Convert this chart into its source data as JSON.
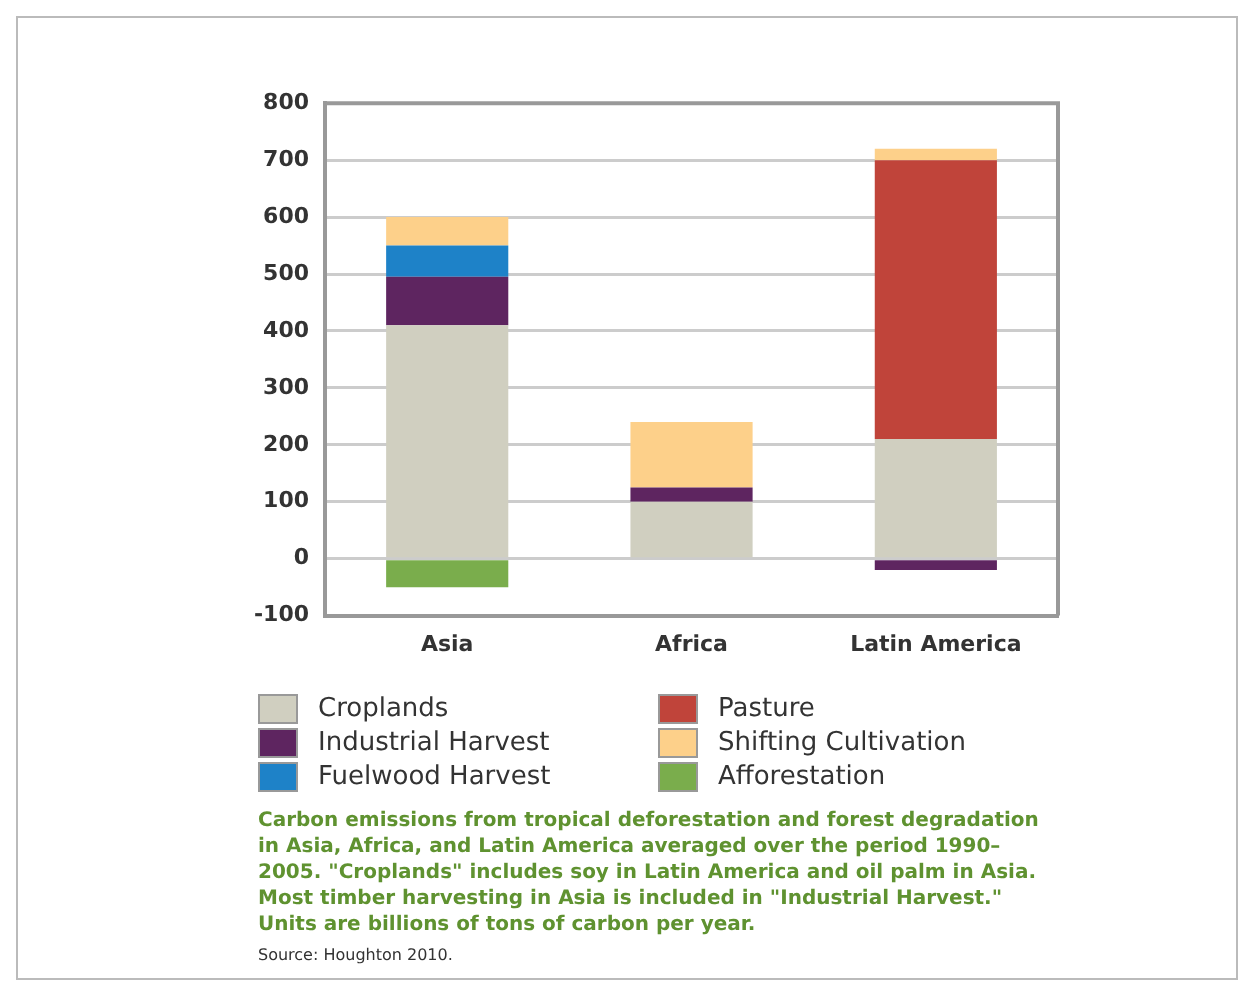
{
  "chart_data": {
    "type": "bar",
    "stacked": true,
    "categories": [
      "Asia",
      "Africa",
      "Latin America"
    ],
    "series": [
      {
        "name": "Croplands",
        "color": "#d0cfc0",
        "values": [
          410,
          100,
          210
        ]
      },
      {
        "name": "Industrial Harvest",
        "color": "#5e2560",
        "values": [
          85,
          25,
          -20
        ]
      },
      {
        "name": "Fuelwood Harvest",
        "color": "#1e82c8",
        "values": [
          55,
          0,
          0
        ]
      },
      {
        "name": "Pasture",
        "color": "#c0443a",
        "values": [
          0,
          0,
          490
        ]
      },
      {
        "name": "Shifting Cultivation",
        "color": "#fdd08a",
        "values": [
          50,
          115,
          20
        ]
      },
      {
        "name": "Afforestation",
        "color": "#7aad4c",
        "values": [
          -50,
          0,
          0
        ]
      }
    ],
    "ylim": [
      -100,
      800
    ],
    "yticks": [
      -100,
      0,
      100,
      200,
      300,
      400,
      500,
      600,
      700,
      800
    ],
    "grid": "y",
    "legend": "bottom",
    "annotations": [
      "Carbon emissions from tropical deforestation and forest degradation in Asia, Africa, and Latin America averaged over the period 1990–2005. \"Croplands\" includes soy in Latin America and oil palm in Asia. Most timber harvesting in Asia is included in \"Industrial Harvest.\" Units are billions of tons of carbon per year.",
      "Source: Houghton 2010."
    ]
  }
}
